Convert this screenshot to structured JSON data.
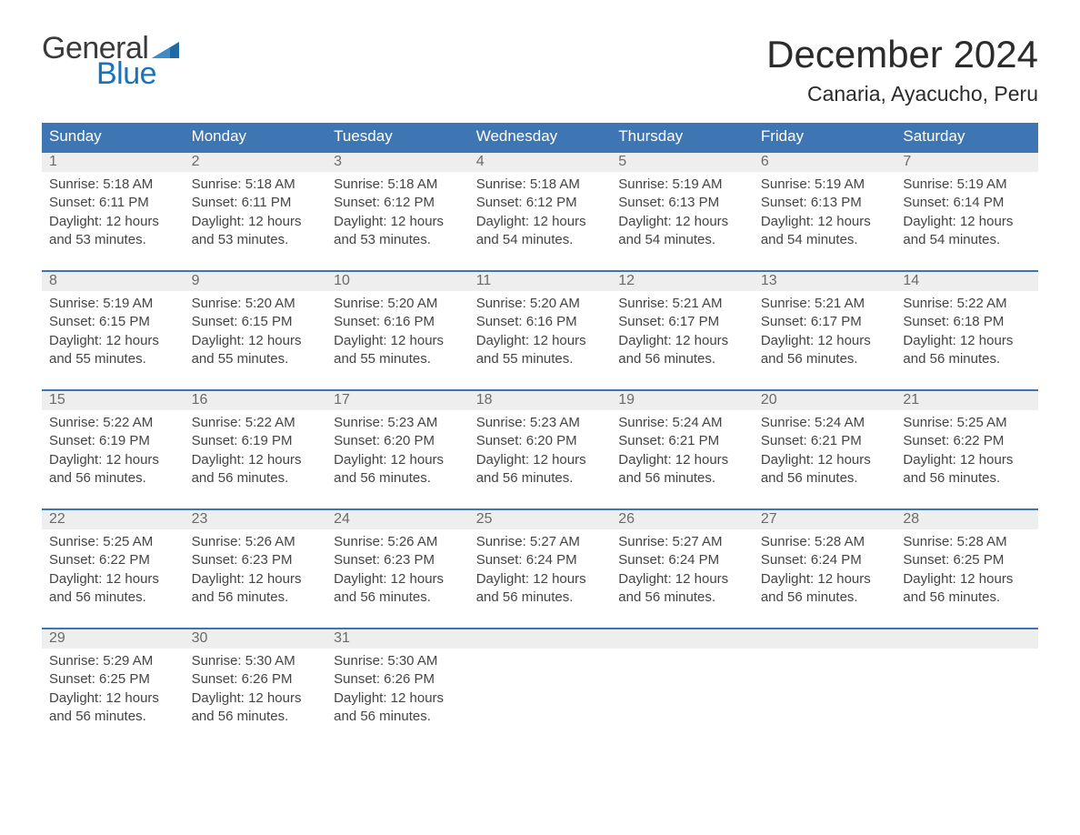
{
  "brand": {
    "part1": "General",
    "part2": "Blue",
    "flag_color": "#1f6aa3"
  },
  "title": "December 2024",
  "location": "Canaria, Ayacucho, Peru",
  "colors": {
    "header_bg": "#3d76b3",
    "header_text": "#ffffff",
    "week_border": "#3d76b3",
    "daynum_bg": "#eeeeee",
    "daynum_text": "#6b6b6b",
    "body_text": "#444444",
    "page_bg": "#ffffff"
  },
  "typography": {
    "title_fontsize": 42,
    "location_fontsize": 23,
    "weekday_fontsize": 17,
    "daynum_fontsize": 16,
    "body_fontsize": 15,
    "font_family": "Arial"
  },
  "layout": {
    "columns": 7,
    "weeks": 5,
    "cell_min_height": 88
  },
  "weekdays": [
    "Sunday",
    "Monday",
    "Tuesday",
    "Wednesday",
    "Thursday",
    "Friday",
    "Saturday"
  ],
  "days": [
    {
      "n": 1,
      "sunrise": "5:18 AM",
      "sunset": "6:11 PM",
      "daylight_h": 12,
      "daylight_m": 53
    },
    {
      "n": 2,
      "sunrise": "5:18 AM",
      "sunset": "6:11 PM",
      "daylight_h": 12,
      "daylight_m": 53
    },
    {
      "n": 3,
      "sunrise": "5:18 AM",
      "sunset": "6:12 PM",
      "daylight_h": 12,
      "daylight_m": 53
    },
    {
      "n": 4,
      "sunrise": "5:18 AM",
      "sunset": "6:12 PM",
      "daylight_h": 12,
      "daylight_m": 54
    },
    {
      "n": 5,
      "sunrise": "5:19 AM",
      "sunset": "6:13 PM",
      "daylight_h": 12,
      "daylight_m": 54
    },
    {
      "n": 6,
      "sunrise": "5:19 AM",
      "sunset": "6:13 PM",
      "daylight_h": 12,
      "daylight_m": 54
    },
    {
      "n": 7,
      "sunrise": "5:19 AM",
      "sunset": "6:14 PM",
      "daylight_h": 12,
      "daylight_m": 54
    },
    {
      "n": 8,
      "sunrise": "5:19 AM",
      "sunset": "6:15 PM",
      "daylight_h": 12,
      "daylight_m": 55
    },
    {
      "n": 9,
      "sunrise": "5:20 AM",
      "sunset": "6:15 PM",
      "daylight_h": 12,
      "daylight_m": 55
    },
    {
      "n": 10,
      "sunrise": "5:20 AM",
      "sunset": "6:16 PM",
      "daylight_h": 12,
      "daylight_m": 55
    },
    {
      "n": 11,
      "sunrise": "5:20 AM",
      "sunset": "6:16 PM",
      "daylight_h": 12,
      "daylight_m": 55
    },
    {
      "n": 12,
      "sunrise": "5:21 AM",
      "sunset": "6:17 PM",
      "daylight_h": 12,
      "daylight_m": 56
    },
    {
      "n": 13,
      "sunrise": "5:21 AM",
      "sunset": "6:17 PM",
      "daylight_h": 12,
      "daylight_m": 56
    },
    {
      "n": 14,
      "sunrise": "5:22 AM",
      "sunset": "6:18 PM",
      "daylight_h": 12,
      "daylight_m": 56
    },
    {
      "n": 15,
      "sunrise": "5:22 AM",
      "sunset": "6:19 PM",
      "daylight_h": 12,
      "daylight_m": 56
    },
    {
      "n": 16,
      "sunrise": "5:22 AM",
      "sunset": "6:19 PM",
      "daylight_h": 12,
      "daylight_m": 56
    },
    {
      "n": 17,
      "sunrise": "5:23 AM",
      "sunset": "6:20 PM",
      "daylight_h": 12,
      "daylight_m": 56
    },
    {
      "n": 18,
      "sunrise": "5:23 AM",
      "sunset": "6:20 PM",
      "daylight_h": 12,
      "daylight_m": 56
    },
    {
      "n": 19,
      "sunrise": "5:24 AM",
      "sunset": "6:21 PM",
      "daylight_h": 12,
      "daylight_m": 56
    },
    {
      "n": 20,
      "sunrise": "5:24 AM",
      "sunset": "6:21 PM",
      "daylight_h": 12,
      "daylight_m": 56
    },
    {
      "n": 21,
      "sunrise": "5:25 AM",
      "sunset": "6:22 PM",
      "daylight_h": 12,
      "daylight_m": 56
    },
    {
      "n": 22,
      "sunrise": "5:25 AM",
      "sunset": "6:22 PM",
      "daylight_h": 12,
      "daylight_m": 56
    },
    {
      "n": 23,
      "sunrise": "5:26 AM",
      "sunset": "6:23 PM",
      "daylight_h": 12,
      "daylight_m": 56
    },
    {
      "n": 24,
      "sunrise": "5:26 AM",
      "sunset": "6:23 PM",
      "daylight_h": 12,
      "daylight_m": 56
    },
    {
      "n": 25,
      "sunrise": "5:27 AM",
      "sunset": "6:24 PM",
      "daylight_h": 12,
      "daylight_m": 56
    },
    {
      "n": 26,
      "sunrise": "5:27 AM",
      "sunset": "6:24 PM",
      "daylight_h": 12,
      "daylight_m": 56
    },
    {
      "n": 27,
      "sunrise": "5:28 AM",
      "sunset": "6:24 PM",
      "daylight_h": 12,
      "daylight_m": 56
    },
    {
      "n": 28,
      "sunrise": "5:28 AM",
      "sunset": "6:25 PM",
      "daylight_h": 12,
      "daylight_m": 56
    },
    {
      "n": 29,
      "sunrise": "5:29 AM",
      "sunset": "6:25 PM",
      "daylight_h": 12,
      "daylight_m": 56
    },
    {
      "n": 30,
      "sunrise": "5:30 AM",
      "sunset": "6:26 PM",
      "daylight_h": 12,
      "daylight_m": 56
    },
    {
      "n": 31,
      "sunrise": "5:30 AM",
      "sunset": "6:26 PM",
      "daylight_h": 12,
      "daylight_m": 56
    }
  ],
  "labels": {
    "sunrise_prefix": "Sunrise: ",
    "sunset_prefix": "Sunset: ",
    "daylight_prefix": "Daylight: ",
    "hours_word": " hours",
    "and_word": "and ",
    "minutes_word": " minutes."
  },
  "first_weekday_index": 0
}
